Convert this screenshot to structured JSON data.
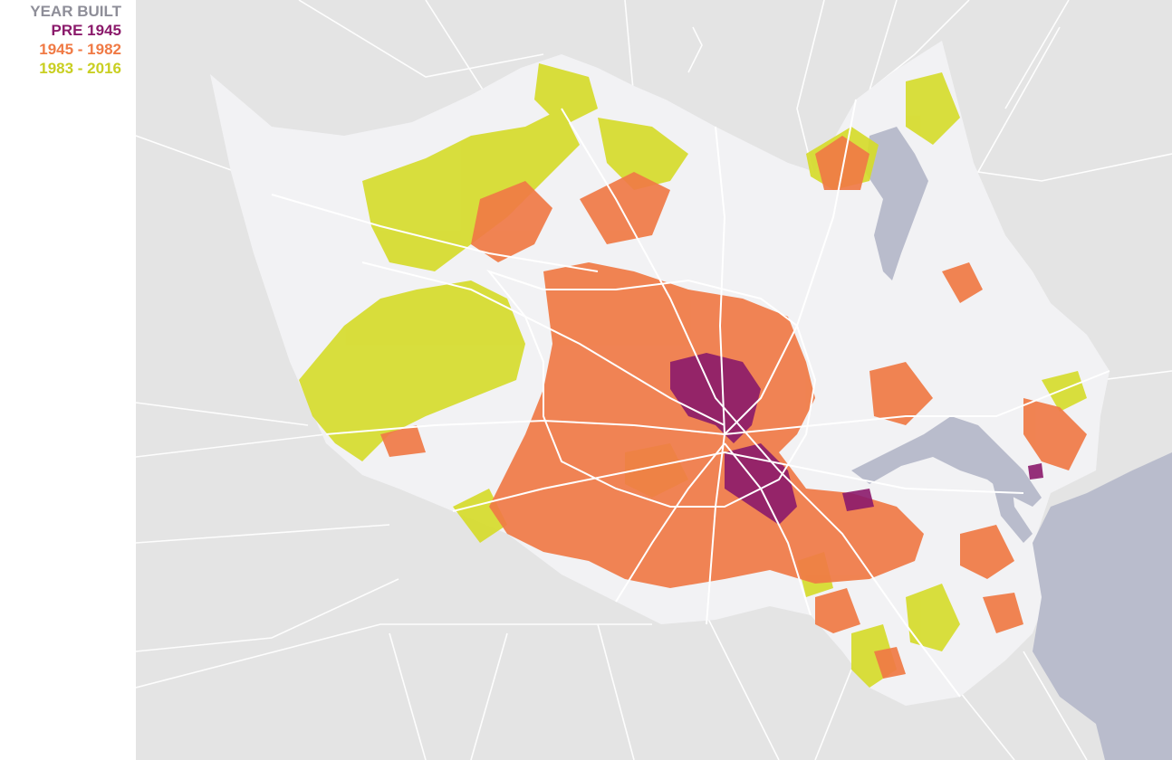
{
  "legend": {
    "title": "YEAR BUILT",
    "title_color": "#8e8e98",
    "items": [
      {
        "label": "PRE 1945",
        "color": "#8b1a6b"
      },
      {
        "label": "1945 - 1982",
        "color": "#f07a45"
      },
      {
        "label": "1983 - 2016",
        "color": "#c9cf22"
      }
    ]
  },
  "map": {
    "background_color": "#e4e4e4",
    "county_fill": "#f2f2f4",
    "water_color": "#b9bccc",
    "road_color": "#ffffff"
  }
}
